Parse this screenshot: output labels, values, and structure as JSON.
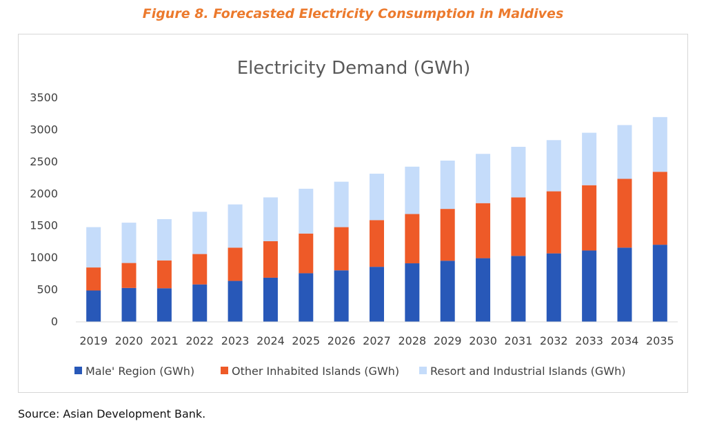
{
  "figure_caption": "Figure 8. Forecasted Electricity Consumption in Maldives",
  "source_note": "Source: Asian Development Bank.",
  "chart_data": {
    "type": "bar",
    "stacked": true,
    "title": "Electricity Demand (GWh)",
    "xlabel": "",
    "ylabel": "",
    "ylim": [
      0,
      3500
    ],
    "yticks": [
      0,
      500,
      1000,
      1500,
      2000,
      2500,
      3000,
      3500
    ],
    "grid": false,
    "legend_position": "bottom",
    "categories": [
      "2019",
      "2020",
      "2021",
      "2022",
      "2023",
      "2024",
      "2025",
      "2026",
      "2027",
      "2028",
      "2029",
      "2030",
      "2031",
      "2032",
      "2033",
      "2034",
      "2035"
    ],
    "series": [
      {
        "name": "Male' Region (GWh)",
        "color": "#2858b8",
        "values": [
          490,
          530,
          525,
          585,
          640,
          690,
          760,
          805,
          860,
          915,
          955,
          995,
          1030,
          1070,
          1115,
          1160,
          1205
        ]
      },
      {
        "name": "Other Inhabited Islands (GWh)",
        "color": "#ee5a28",
        "values": [
          360,
          390,
          435,
          475,
          520,
          570,
          620,
          675,
          730,
          770,
          810,
          860,
          915,
          970,
          1020,
          1075,
          1140
        ]
      },
      {
        "name": "Resort and Industrial Islands (GWh)",
        "color": "#c5dcfa",
        "values": [
          630,
          630,
          645,
          660,
          675,
          685,
          700,
          710,
          725,
          740,
          755,
          770,
          790,
          800,
          820,
          840,
          855
        ]
      }
    ]
  }
}
